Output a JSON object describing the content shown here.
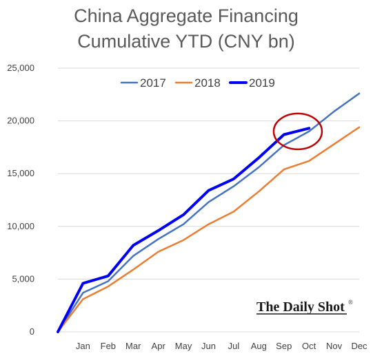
{
  "chart_data": {
    "type": "line",
    "title_lines": [
      "China Aggregate Financing",
      "Cumulative YTD (CNY bn)"
    ],
    "x_categories": [
      "",
      "Jan",
      "Feb",
      "Mar",
      "Apr",
      "May",
      "Jun",
      "Jul",
      "Aug",
      "Sep",
      "Oct",
      "Nov",
      "Dec"
    ],
    "y_ticks": [
      0,
      5000,
      10000,
      15000,
      20000,
      25000
    ],
    "y_tick_labels": [
      "0",
      "5,000",
      "10,000",
      "15,000",
      "20,000",
      "25,000"
    ],
    "ylim": [
      0,
      25000
    ],
    "grid": true,
    "legend_position": "top",
    "series": [
      {
        "name": "2017",
        "color": "#4472C4",
        "width": 2.5,
        "values": [
          0,
          3700,
          4800,
          7200,
          8800,
          10200,
          12300,
          13800,
          15600,
          17700,
          19000,
          20900,
          22600
        ]
      },
      {
        "name": "2018",
        "color": "#ED7D31",
        "width": 2.5,
        "values": [
          0,
          3100,
          4300,
          5900,
          7600,
          8700,
          10200,
          11400,
          13300,
          15400,
          16200,
          17800,
          19400
        ]
      },
      {
        "name": "2019",
        "color": "#0000F5",
        "width": 4,
        "values": [
          0,
          4600,
          5300,
          8200,
          9600,
          11100,
          13400,
          14500,
          16500,
          18700,
          19300,
          null,
          null
        ]
      }
    ],
    "annotation": {
      "type": "circle",
      "color": "#C00000",
      "target_series": "2019",
      "target_categories": [
        "Sep",
        "Oct"
      ]
    },
    "watermark": {
      "text": "The Daily Shot",
      "mark": "®"
    }
  }
}
